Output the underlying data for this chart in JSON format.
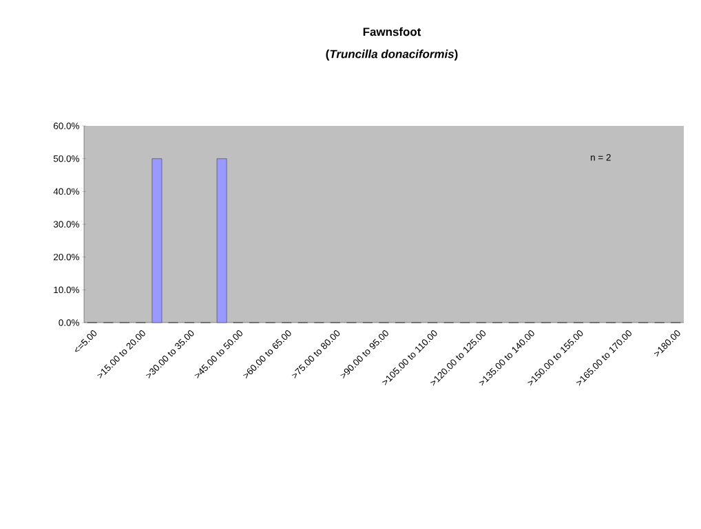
{
  "chart_data": {
    "type": "bar",
    "title": "Fawnsfoot",
    "subtitle": "(*Truncilla donaciformis*)",
    "categories": [
      "<=5.00",
      null,
      null,
      ">15.00 to 20.00",
      null,
      null,
      ">30.00 to 35.00",
      null,
      null,
      ">45.00 to 50.00",
      null,
      null,
      ">60.00 to 65.00",
      null,
      null,
      ">75.00 to 80.00",
      null,
      null,
      ">90.00 to 95.00",
      null,
      null,
      ">105.00 to 110.00",
      null,
      null,
      ">120.00 to 125.00",
      null,
      null,
      ">135.00 to 140.00",
      null,
      null,
      ">150.00 to 155.00",
      null,
      null,
      ">165.00 to 170.00",
      null,
      null,
      ">180.00"
    ],
    "values": [
      0,
      0,
      0,
      0,
      50,
      0,
      0,
      0,
      50,
      0,
      0,
      0,
      0,
      0,
      0,
      0,
      0,
      0,
      0,
      0,
      0,
      0,
      0,
      0,
      0,
      0,
      0,
      0,
      0,
      0,
      0,
      0,
      0,
      0,
      0,
      0,
      0
    ],
    "color": "#9999ff",
    "ylim": [
      0,
      60
    ],
    "yticks": [
      {
        "value": 0,
        "label": "0.0%"
      },
      {
        "value": 10,
        "label": "10.0%"
      },
      {
        "value": 20,
        "label": "20.0%"
      },
      {
        "value": 30,
        "label": "30.0%"
      },
      {
        "value": 40,
        "label": "40.0%"
      },
      {
        "value": 50,
        "label": "50.0%"
      },
      {
        "value": 60,
        "label": "60.0%"
      }
    ],
    "annotations": [
      "n = 2"
    ]
  }
}
